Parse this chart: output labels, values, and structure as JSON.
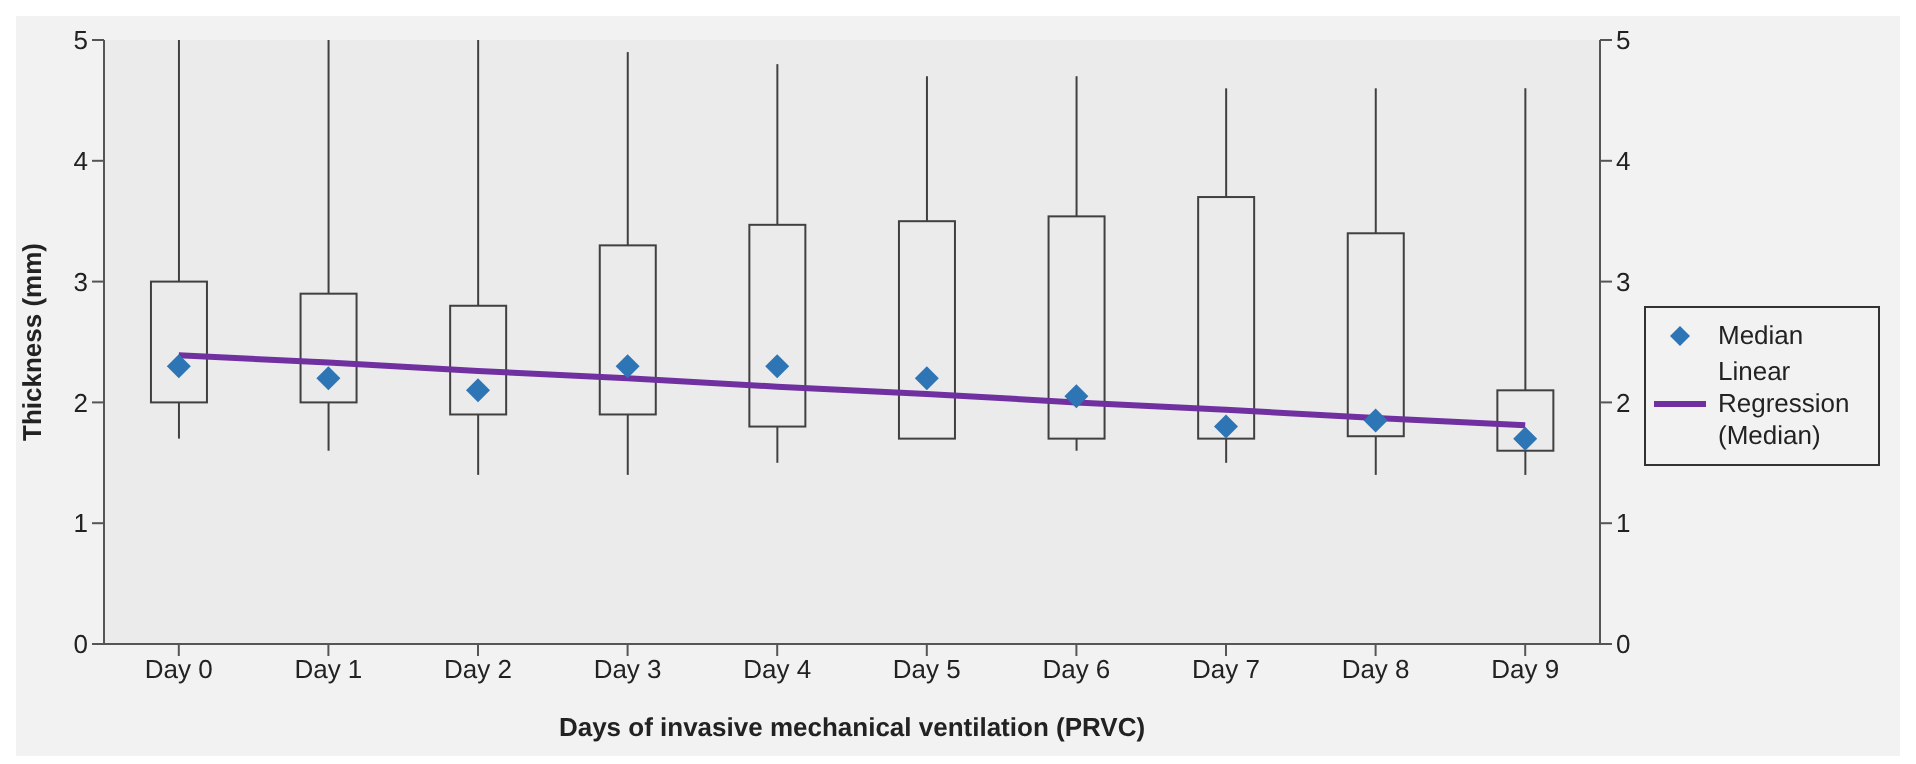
{
  "chart_data": {
    "type": "box",
    "xlabel": "Days of invasive mechanical ventilation (PRVC)",
    "ylabel": "Thickness (mm)",
    "categories": [
      "Day 0",
      "Day 1",
      "Day 2",
      "Day 3",
      "Day 4",
      "Day 5",
      "Day 6",
      "Day 7",
      "Day 8",
      "Day 9"
    ],
    "series": [
      {
        "color": "#404040",
        "boxes": [
          {
            "low": 1.7,
            "q1": 2.0,
            "q3": 3.0,
            "high": 5.0
          },
          {
            "low": 1.6,
            "q1": 2.0,
            "q3": 2.9,
            "high": 5.0
          },
          {
            "low": 1.4,
            "q1": 1.9,
            "q3": 2.8,
            "high": 5.0
          },
          {
            "low": 1.4,
            "q1": 1.9,
            "q3": 3.3,
            "high": 4.9
          },
          {
            "low": 1.5,
            "q1": 1.8,
            "q3": 3.47,
            "high": 4.8
          },
          {
            "low": 1.7,
            "q1": 1.7,
            "q3": 3.5,
            "high": 4.7
          },
          {
            "low": 1.6,
            "q1": 1.7,
            "q3": 3.54,
            "high": 4.7
          },
          {
            "low": 1.5,
            "q1": 1.7,
            "q3": 3.7,
            "high": 4.6
          },
          {
            "low": 1.4,
            "q1": 1.72,
            "q3": 3.4,
            "high": 4.6
          },
          {
            "low": 1.4,
            "q1": 1.6,
            "q3": 2.1,
            "high": 4.6
          }
        ]
      },
      {
        "type": "scatter",
        "name": "Median",
        "color": "#2e75b6",
        "marker": "diamond",
        "values": [
          2.3,
          2.2,
          2.1,
          2.3,
          2.3,
          2.2,
          2.05,
          1.8,
          1.85,
          1.7
        ]
      },
      {
        "type": "line",
        "name": "Linear Regression (Median)",
        "color": "#7030a0",
        "values": [
          2.39,
          2.33,
          2.26,
          2.2,
          2.13,
          2.07,
          2.0,
          1.94,
          1.87,
          1.81
        ]
      }
    ],
    "ylim": [
      0,
      5
    ],
    "yticks": [
      0,
      1,
      2,
      3,
      4,
      5
    ],
    "y2lim": [
      0,
      5
    ],
    "y2ticks": [
      0,
      1,
      2,
      3,
      4,
      5
    ],
    "legend": "right"
  }
}
